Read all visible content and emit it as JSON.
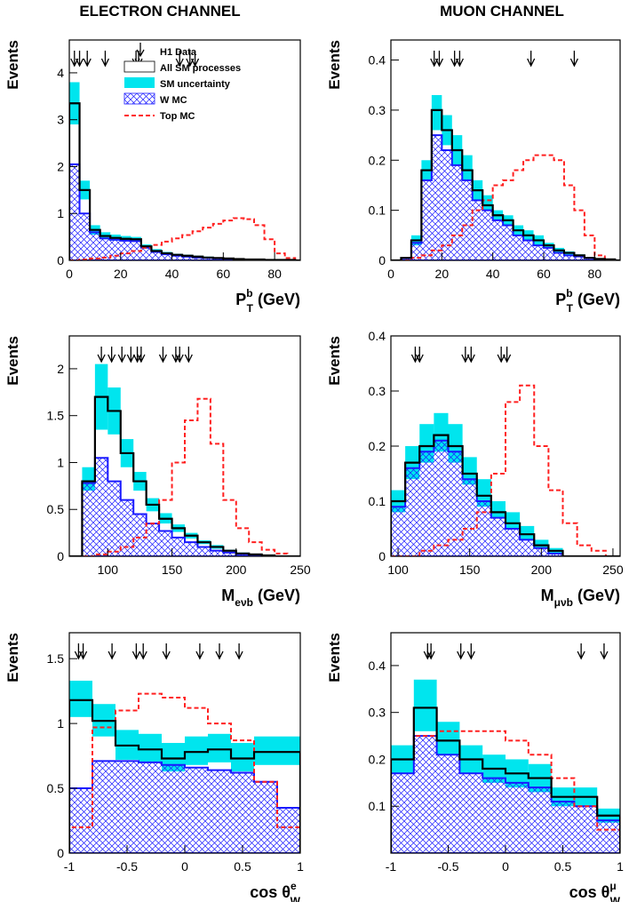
{
  "figure": {
    "left_title": "ELECTRON CHANNEL",
    "right_title": "MUON CHANNEL"
  },
  "legend": {
    "data": "H1 Data",
    "sm": "All SM processes",
    "unc": "SM uncertainty",
    "w": "W MC",
    "top": "Top MC"
  },
  "colors": {
    "sm_line": "#000000",
    "uncertainty_fill": "#00e5ee",
    "w_mc": "#1a1aff",
    "top_mc": "#ff2020",
    "data_arrow": "#000000"
  },
  "chart_data": [
    {
      "type": "histogram",
      "channel": "electron",
      "xlabel": "P_T^b (GeV)",
      "xlabel_main": "P",
      "xlabel_sub": "T",
      "xlabel_sup": "b",
      "xlabel_unit": "(GeV)",
      "ylabel": "Events",
      "xlim": [
        0,
        90
      ],
      "ylim": [
        0,
        4.7
      ],
      "xticks": [
        0,
        20,
        40,
        60,
        80
      ],
      "xtick_labels": [
        "0",
        "20",
        "40",
        "60",
        "80"
      ],
      "yticks": [
        0,
        1,
        2,
        3,
        4
      ],
      "ytick_labels": [
        "0",
        "1",
        "2",
        "3",
        "4"
      ],
      "bin_edges": [
        0,
        4,
        8,
        12,
        16,
        20,
        24,
        28,
        32,
        36,
        40,
        44,
        48,
        52,
        56,
        60,
        64,
        68,
        72,
        76,
        80,
        84,
        88,
        90
      ],
      "sm": [
        3.35,
        1.5,
        0.65,
        0.52,
        0.48,
        0.46,
        0.45,
        0.3,
        0.2,
        0.15,
        0.12,
        0.1,
        0.08,
        0.06,
        0.05,
        0.04,
        0.03,
        0.02,
        0.02,
        0.01,
        0.01,
        0.01,
        0.0
      ],
      "sm_unc_low": [
        2.9,
        1.3,
        0.55,
        0.45,
        0.42,
        0.41,
        0.4,
        0.26,
        0.17,
        0.13,
        0.1,
        0.08,
        0.07,
        0.05,
        0.04,
        0.03,
        0.02,
        0.02,
        0.01,
        0.01,
        0.01,
        0.0,
        0.0
      ],
      "sm_unc_high": [
        3.8,
        1.7,
        0.75,
        0.6,
        0.55,
        0.52,
        0.5,
        0.34,
        0.24,
        0.18,
        0.14,
        0.12,
        0.1,
        0.08,
        0.06,
        0.05,
        0.04,
        0.03,
        0.02,
        0.02,
        0.01,
        0.01,
        0.0
      ],
      "w_mc": [
        2.05,
        1.0,
        0.6,
        0.47,
        0.44,
        0.42,
        0.41,
        0.27,
        0.18,
        0.13,
        0.1,
        0.08,
        0.06,
        0.05,
        0.04,
        0.03,
        0.02,
        0.02,
        0.01,
        0.01,
        0.01,
        0.0,
        0.0
      ],
      "top_mc": [
        0.0,
        0.02,
        0.04,
        0.06,
        0.1,
        0.15,
        0.2,
        0.27,
        0.33,
        0.4,
        0.47,
        0.54,
        0.62,
        0.7,
        0.78,
        0.85,
        0.9,
        0.88,
        0.75,
        0.45,
        0.15,
        0.05,
        0.0
      ],
      "data_events": [
        2,
        4,
        7,
        14,
        26,
        27,
        43,
        47,
        49
      ]
    },
    {
      "type": "histogram",
      "channel": "muon",
      "xlabel": "P_T^b (GeV)",
      "xlabel_main": "P",
      "xlabel_sub": "T",
      "xlabel_sup": "b",
      "xlabel_unit": "(GeV)",
      "ylabel": "Events",
      "xlim": [
        0,
        90
      ],
      "ylim": [
        0,
        0.44
      ],
      "xticks": [
        0,
        20,
        40,
        60,
        80
      ],
      "xtick_labels": [
        "0",
        "20",
        "40",
        "60",
        "80"
      ],
      "yticks": [
        0,
        0.1,
        0.2,
        0.3,
        0.4
      ],
      "ytick_labels": [
        "0",
        "0.1",
        "0.2",
        "0.3",
        "0.4"
      ],
      "bin_edges": [
        0,
        4,
        8,
        12,
        16,
        20,
        24,
        28,
        32,
        36,
        40,
        44,
        48,
        52,
        56,
        60,
        64,
        68,
        72,
        76,
        80,
        84,
        88,
        90
      ],
      "sm": [
        0.0,
        0.005,
        0.04,
        0.18,
        0.3,
        0.26,
        0.22,
        0.18,
        0.14,
        0.11,
        0.09,
        0.08,
        0.06,
        0.05,
        0.04,
        0.03,
        0.02,
        0.015,
        0.01,
        0.005,
        0.003,
        0.002,
        0.0
      ],
      "sm_unc_low": [
        0.0,
        0.004,
        0.03,
        0.16,
        0.26,
        0.23,
        0.19,
        0.16,
        0.12,
        0.1,
        0.08,
        0.07,
        0.05,
        0.04,
        0.03,
        0.025,
        0.015,
        0.01,
        0.008,
        0.004,
        0.002,
        0.001,
        0.0
      ],
      "sm_unc_high": [
        0.0,
        0.006,
        0.05,
        0.2,
        0.33,
        0.29,
        0.25,
        0.21,
        0.16,
        0.13,
        0.1,
        0.09,
        0.07,
        0.06,
        0.05,
        0.035,
        0.025,
        0.018,
        0.012,
        0.006,
        0.004,
        0.002,
        0.0
      ],
      "w_mc": [
        0.0,
        0.004,
        0.035,
        0.16,
        0.25,
        0.22,
        0.19,
        0.16,
        0.12,
        0.1,
        0.08,
        0.07,
        0.05,
        0.04,
        0.03,
        0.025,
        0.015,
        0.01,
        0.008,
        0.004,
        0.002,
        0.001,
        0.0
      ],
      "top_mc": [
        0.0,
        0.0,
        0.005,
        0.01,
        0.02,
        0.03,
        0.05,
        0.07,
        0.1,
        0.12,
        0.15,
        0.16,
        0.18,
        0.2,
        0.21,
        0.21,
        0.2,
        0.15,
        0.1,
        0.05,
        0.01,
        0.0,
        0.0
      ],
      "data_events": [
        17,
        19,
        25,
        27,
        55,
        72
      ]
    },
    {
      "type": "histogram",
      "channel": "electron",
      "xlabel": "M_evb (GeV)",
      "xlabel_main": "M",
      "xlabel_sub": "eνb",
      "xlabel_sup": "",
      "xlabel_unit": "(GeV)",
      "ylabel": "Events",
      "xlim": [
        70,
        250
      ],
      "ylim": [
        0,
        2.35
      ],
      "xticks": [
        100,
        150,
        200,
        250
      ],
      "xtick_labels": [
        "100",
        "150",
        "200",
        "250"
      ],
      "yticks": [
        0,
        0.5,
        1,
        1.5,
        2
      ],
      "ytick_labels": [
        "0",
        "0.5",
        "1",
        "1.5",
        "2"
      ],
      "bin_edges": [
        70,
        80,
        90,
        100,
        110,
        120,
        130,
        140,
        150,
        160,
        170,
        180,
        190,
        200,
        210,
        220,
        230,
        240,
        250
      ],
      "sm": [
        0.0,
        0.8,
        1.7,
        1.55,
        1.1,
        0.8,
        0.55,
        0.4,
        0.3,
        0.22,
        0.15,
        0.1,
        0.06,
        0.03,
        0.02,
        0.01,
        0.0,
        0.0
      ],
      "sm_unc_low": [
        0.0,
        0.7,
        1.35,
        1.3,
        0.95,
        0.7,
        0.48,
        0.35,
        0.26,
        0.19,
        0.13,
        0.08,
        0.05,
        0.02,
        0.01,
        0.0,
        0.0,
        0.0
      ],
      "sm_unc_high": [
        0.0,
        0.95,
        2.05,
        1.8,
        1.25,
        0.9,
        0.62,
        0.46,
        0.34,
        0.25,
        0.17,
        0.12,
        0.07,
        0.04,
        0.02,
        0.01,
        0.0,
        0.0
      ],
      "w_mc": [
        0.0,
        0.78,
        1.05,
        0.8,
        0.6,
        0.45,
        0.35,
        0.27,
        0.2,
        0.15,
        0.1,
        0.06,
        0.04,
        0.02,
        0.01,
        0.0,
        0.0,
        0.0
      ],
      "top_mc": [
        0.0,
        0.0,
        0.02,
        0.05,
        0.1,
        0.2,
        0.35,
        0.6,
        1.0,
        1.45,
        1.68,
        1.2,
        0.6,
        0.3,
        0.15,
        0.07,
        0.03,
        0.0
      ],
      "data_events": [
        95,
        103,
        111,
        118,
        123,
        126,
        143,
        153,
        156,
        163
      ]
    },
    {
      "type": "histogram",
      "channel": "muon",
      "xlabel": "M_μvb (GeV)",
      "xlabel_main": "M",
      "xlabel_sub": "μνb",
      "xlabel_sup": "",
      "xlabel_unit": "(GeV)",
      "ylabel": "Events",
      "xlim": [
        95,
        255
      ],
      "ylim": [
        0,
        0.4
      ],
      "xticks": [
        100,
        150,
        200,
        250
      ],
      "xtick_labels": [
        "100",
        "150",
        "200",
        "250"
      ],
      "yticks": [
        0,
        0.1,
        0.2,
        0.3,
        0.4
      ],
      "ytick_labels": [
        "0",
        "0.1",
        "0.2",
        "0.3",
        "0.4"
      ],
      "bin_edges": [
        95,
        105,
        115,
        125,
        135,
        145,
        155,
        165,
        175,
        185,
        195,
        205,
        215,
        225,
        235,
        245,
        255
      ],
      "sm": [
        0.1,
        0.17,
        0.2,
        0.22,
        0.2,
        0.15,
        0.11,
        0.08,
        0.06,
        0.04,
        0.02,
        0.01,
        0.0,
        0.0,
        0.0,
        0.0
      ],
      "sm_unc_low": [
        0.08,
        0.14,
        0.17,
        0.19,
        0.17,
        0.13,
        0.09,
        0.07,
        0.05,
        0.03,
        0.015,
        0.005,
        0.0,
        0.0,
        0.0,
        0.0
      ],
      "sm_unc_high": [
        0.12,
        0.2,
        0.24,
        0.26,
        0.24,
        0.18,
        0.14,
        0.1,
        0.08,
        0.055,
        0.03,
        0.015,
        0.0,
        0.0,
        0.0,
        0.0
      ],
      "w_mc": [
        0.09,
        0.16,
        0.19,
        0.21,
        0.19,
        0.14,
        0.1,
        0.07,
        0.05,
        0.03,
        0.015,
        0.005,
        0.0,
        0.0,
        0.0,
        0.0
      ],
      "top_mc": [
        0.0,
        0.0,
        0.01,
        0.02,
        0.03,
        0.05,
        0.08,
        0.15,
        0.28,
        0.31,
        0.2,
        0.12,
        0.06,
        0.02,
        0.01,
        0.0
      ],
      "data_events": [
        112,
        115,
        147,
        151,
        172,
        176
      ]
    },
    {
      "type": "histogram",
      "channel": "electron",
      "xlabel": "cos θ_W^e",
      "xlabel_main": "cos θ",
      "xlabel_sub": "W",
      "xlabel_sup": "e",
      "xlabel_unit": "",
      "ylabel": "Events",
      "xlim": [
        -1,
        1
      ],
      "ylim": [
        0,
        1.7
      ],
      "xticks": [
        -1,
        -0.5,
        0,
        0.5,
        1
      ],
      "xtick_labels": [
        "-1",
        "-0.5",
        "0",
        "0.5",
        "1"
      ],
      "yticks": [
        0,
        0.5,
        1,
        1.5
      ],
      "ytick_labels": [
        "0",
        "0.5",
        "1",
        "1.5"
      ],
      "bin_edges": [
        -1,
        -0.8,
        -0.6,
        -0.4,
        -0.2,
        0,
        0.2,
        0.4,
        0.6,
        0.8,
        1
      ],
      "sm": [
        1.18,
        1.02,
        0.83,
        0.8,
        0.73,
        0.78,
        0.8,
        0.73,
        0.78,
        0.78
      ],
      "sm_unc_low": [
        1.05,
        0.9,
        0.72,
        0.7,
        0.63,
        0.68,
        0.7,
        0.63,
        0.68,
        0.68
      ],
      "sm_unc_high": [
        1.33,
        1.15,
        0.95,
        0.92,
        0.85,
        0.9,
        0.92,
        0.85,
        0.9,
        0.9
      ],
      "w_mc": [
        0.5,
        0.71,
        0.71,
        0.7,
        0.68,
        0.66,
        0.64,
        0.62,
        0.55,
        0.35
      ],
      "top_mc": [
        0.2,
        0.97,
        1.1,
        1.23,
        1.2,
        1.12,
        1.0,
        0.87,
        0.55,
        0.2
      ],
      "data_events": [
        -0.92,
        -0.88,
        -0.63,
        -0.42,
        -0.36,
        -0.16,
        0.13,
        0.3,
        0.47
      ]
    },
    {
      "type": "histogram",
      "channel": "muon",
      "xlabel": "cos θ_W^μ",
      "xlabel_main": "cos θ",
      "xlabel_sub": "W",
      "xlabel_sup": "μ",
      "xlabel_unit": "",
      "ylabel": "Events",
      "xlim": [
        -1,
        1
      ],
      "ylim": [
        0,
        0.47
      ],
      "xticks": [
        -1,
        -0.5,
        0,
        0.5,
        1
      ],
      "xtick_labels": [
        "-1",
        "-0.5",
        "0",
        "0.5",
        "1"
      ],
      "yticks": [
        0.1,
        0.2,
        0.3,
        0.4
      ],
      "ytick_labels": [
        "0.1",
        "0.2",
        "0.3",
        "0.4"
      ],
      "bin_edges": [
        -1,
        -0.8,
        -0.6,
        -0.4,
        -0.2,
        0,
        0.2,
        0.4,
        0.6,
        0.8,
        1
      ],
      "sm": [
        0.2,
        0.31,
        0.24,
        0.2,
        0.18,
        0.17,
        0.16,
        0.12,
        0.12,
        0.08
      ],
      "sm_unc_low": [
        0.17,
        0.26,
        0.21,
        0.17,
        0.15,
        0.14,
        0.13,
        0.1,
        0.1,
        0.065
      ],
      "sm_unc_high": [
        0.23,
        0.37,
        0.28,
        0.23,
        0.21,
        0.2,
        0.19,
        0.14,
        0.14,
        0.095
      ],
      "w_mc": [
        0.17,
        0.25,
        0.21,
        0.17,
        0.16,
        0.15,
        0.14,
        0.11,
        0.1,
        0.07
      ],
      "top_mc": [
        0.2,
        0.25,
        0.26,
        0.26,
        0.26,
        0.24,
        0.21,
        0.16,
        0.1,
        0.05
      ],
      "data_events": [
        -0.68,
        -0.65,
        -0.39,
        -0.3,
        0.66,
        0.86
      ]
    }
  ]
}
